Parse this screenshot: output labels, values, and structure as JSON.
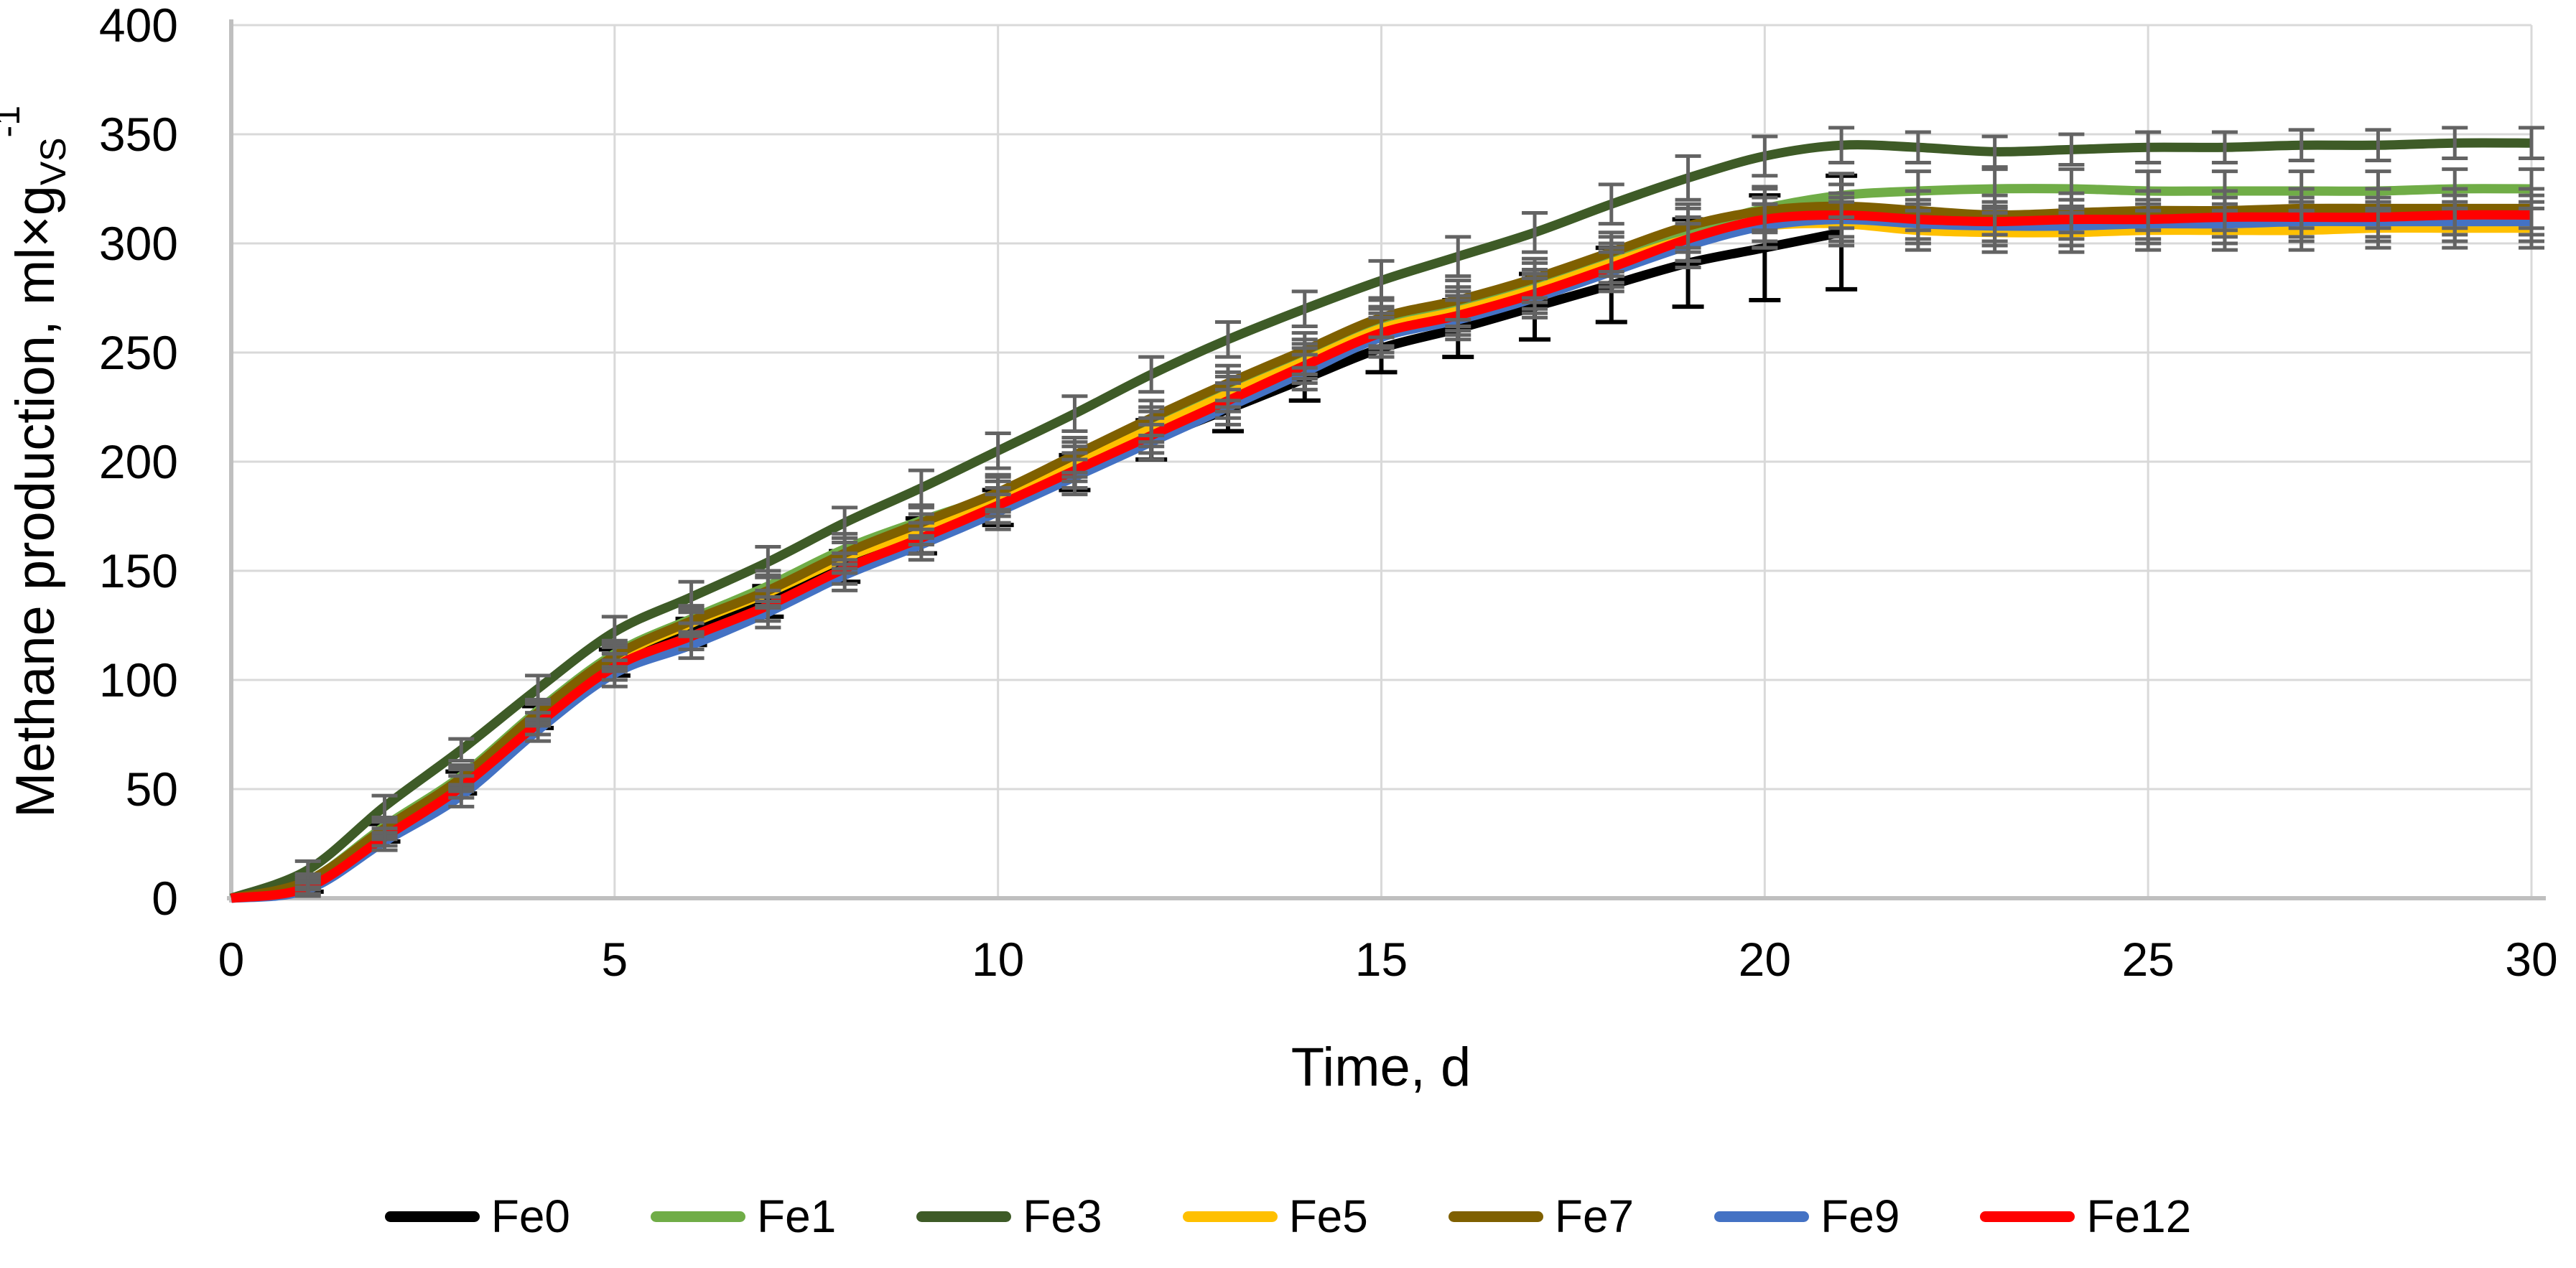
{
  "style": {
    "background": "#FFFFFF",
    "grid_color": "#D9D9D9",
    "axis_color": "#BFBFBF",
    "error_bar_color": "#636363",
    "fe0_error_bar_color": "#000000"
  },
  "chart_data": {
    "type": "line",
    "title": "",
    "xlabel": "Time, d",
    "ylabel_main": "Methane production, ml×g",
    "ylabel_sub": "VS",
    "ylabel_sup": "-1",
    "xlim": [
      0,
      30
    ],
    "ylim": [
      0,
      400
    ],
    "x_ticks": [
      0,
      5,
      10,
      15,
      20,
      25,
      30
    ],
    "y_ticks": [
      0,
      50,
      100,
      150,
      200,
      250,
      300,
      350,
      400
    ],
    "grid": true,
    "line_shape": "smooth",
    "legend_position": "bottom",
    "x": [
      0,
      1,
      2,
      3,
      4,
      5,
      6,
      7,
      8,
      9,
      10,
      11,
      12,
      13,
      14,
      15,
      16,
      17,
      18,
      19,
      20,
      21,
      22,
      23,
      24,
      25,
      26,
      27,
      28,
      29,
      30
    ],
    "series": [
      {
        "name": "Fe0",
        "color": "#000000",
        "error_color": "#000000",
        "values": [
          0,
          6,
          30,
          53,
          83,
          108,
          122,
          136,
          152,
          166,
          179,
          195,
          210,
          224,
          238,
          252,
          261,
          271,
          281,
          291,
          298,
          305
        ],
        "errors": [
          0,
          3,
          4,
          5,
          5,
          6,
          6,
          7,
          7,
          8,
          8,
          8,
          9,
          10,
          10,
          11,
          13,
          15,
          17,
          20,
          24,
          26
        ]
      },
      {
        "name": "Fe1",
        "color": "#70AD47",
        "error_color": "#636363",
        "values": [
          0,
          8,
          33,
          56,
          86,
          112,
          128,
          143,
          160,
          173,
          185,
          201,
          217,
          233,
          248,
          262,
          271,
          282,
          294,
          306,
          316,
          322,
          324,
          325,
          325,
          324,
          324,
          324,
          324,
          325,
          325
        ],
        "errors": [
          0,
          3,
          4,
          5,
          5,
          6,
          6,
          7,
          7,
          7,
          8,
          8,
          8,
          8,
          8,
          9,
          9,
          9,
          9,
          10,
          10,
          10,
          9,
          9,
          9,
          9,
          9,
          9,
          9,
          9,
          9
        ]
      },
      {
        "name": "Fe3",
        "color": "#3E5B27",
        "error_color": "#636363",
        "values": [
          0,
          13,
          42,
          68,
          96,
          122,
          138,
          154,
          172,
          188,
          205,
          222,
          240,
          256,
          270,
          283,
          294,
          305,
          318,
          330,
          340,
          345,
          344,
          342,
          343,
          344,
          344,
          345,
          345,
          346,
          346
        ],
        "errors": [
          0,
          4,
          5,
          5,
          6,
          7,
          7,
          7,
          7,
          8,
          8,
          8,
          8,
          8,
          8,
          9,
          9,
          9,
          9,
          10,
          9,
          8,
          7,
          7,
          7,
          7,
          7,
          7,
          7,
          7,
          7
        ]
      },
      {
        "name": "Fe5",
        "color": "#FFC000",
        "error_color": "#636363",
        "values": [
          0,
          7,
          31,
          54,
          84,
          110,
          126,
          140,
          156,
          169,
          183,
          199,
          215,
          231,
          246,
          261,
          269,
          279,
          291,
          302,
          308,
          309,
          306,
          305,
          305,
          306,
          306,
          306,
          307,
          307,
          307
        ],
        "errors": [
          0,
          3,
          4,
          5,
          5,
          6,
          6,
          7,
          7,
          7,
          8,
          8,
          8,
          8,
          8,
          9,
          9,
          9,
          9,
          10,
          10,
          10,
          9,
          9,
          9,
          9,
          9,
          9,
          9,
          9,
          9
        ]
      },
      {
        "name": "Fe7",
        "color": "#7F6000",
        "error_color": "#636363",
        "values": [
          0,
          8,
          32,
          55,
          85,
          111,
          127,
          141,
          158,
          172,
          186,
          203,
          220,
          236,
          251,
          266,
          274,
          284,
          296,
          308,
          315,
          317,
          315,
          313,
          314,
          315,
          315,
          316,
          316,
          316,
          316
        ],
        "errors": [
          0,
          3,
          4,
          5,
          5,
          6,
          6,
          7,
          7,
          7,
          8,
          8,
          8,
          8,
          8,
          9,
          9,
          9,
          9,
          10,
          10,
          10,
          9,
          9,
          9,
          9,
          9,
          9,
          9,
          9,
          9
        ]
      },
      {
        "name": "Fe9",
        "color": "#4472C4",
        "error_color": "#636363",
        "values": [
          0,
          4,
          26,
          47,
          77,
          103,
          116,
          131,
          148,
          162,
          177,
          193,
          209,
          225,
          241,
          257,
          265,
          275,
          287,
          299,
          308,
          311,
          309,
          308,
          308,
          309,
          309,
          310,
          310,
          310,
          310
        ],
        "errors": [
          0,
          3,
          4,
          5,
          5,
          6,
          6,
          7,
          7,
          7,
          8,
          8,
          8,
          8,
          8,
          9,
          9,
          9,
          9,
          10,
          10,
          10,
          9,
          9,
          9,
          9,
          9,
          9,
          9,
          9,
          9
        ]
      },
      {
        "name": "Fe12",
        "color": "#FF0000",
        "error_color": "#636363",
        "values": [
          0,
          5,
          28,
          51,
          80,
          106,
          120,
          134,
          151,
          165,
          180,
          196,
          212,
          228,
          244,
          259,
          267,
          277,
          289,
          302,
          311,
          313,
          311,
          310,
          311,
          311,
          312,
          312,
          312,
          313,
          313
        ],
        "errors": [
          0,
          3,
          4,
          5,
          5,
          6,
          6,
          7,
          7,
          7,
          8,
          8,
          8,
          8,
          8,
          9,
          9,
          9,
          9,
          10,
          10,
          10,
          9,
          9,
          9,
          9,
          9,
          9,
          9,
          9,
          9
        ]
      }
    ]
  }
}
